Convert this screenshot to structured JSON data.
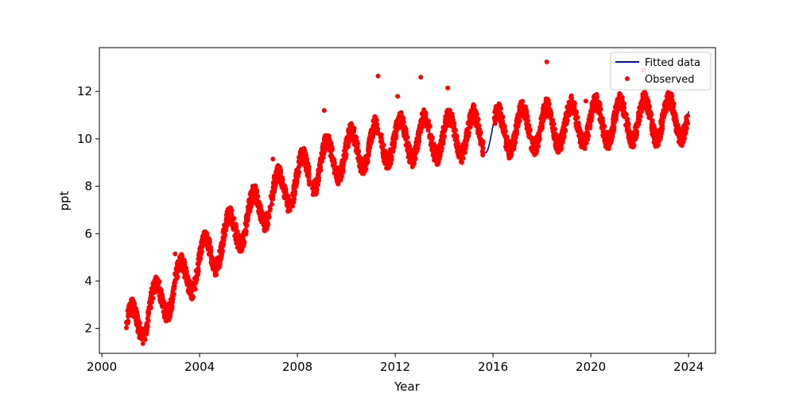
{
  "chart_data": {
    "type": "line",
    "title": "",
    "xlabel": "Year",
    "ylabel": "ppt",
    "xlim": [
      1999.9,
      2025.1
    ],
    "ylim": [
      0.95,
      13.85
    ],
    "xticks": [
      2000,
      2004,
      2008,
      2012,
      2016,
      2020,
      2024
    ],
    "yticks": [
      2,
      4,
      6,
      8,
      10,
      12
    ],
    "grid": false,
    "legend_position": "top-right",
    "series": [
      {
        "name": "Fitted data",
        "kind": "line",
        "color": "#0000ff",
        "x_range": [
          2001.0,
          2024.0
        ],
        "x_step": 0.02,
        "trend_knots": [
          [
            2001.0,
            1.85
          ],
          [
            2002.0,
            2.85
          ],
          [
            2003.0,
            3.75
          ],
          [
            2004.0,
            4.75
          ],
          [
            2005.0,
            5.75
          ],
          [
            2006.0,
            6.7
          ],
          [
            2007.0,
            7.55
          ],
          [
            2008.0,
            8.3
          ],
          [
            2009.0,
            8.95
          ],
          [
            2010.0,
            9.4
          ],
          [
            2011.0,
            9.75
          ],
          [
            2012.0,
            9.95
          ],
          [
            2013.0,
            10.05
          ],
          [
            2014.0,
            10.1
          ],
          [
            2015.0,
            10.2
          ],
          [
            2016.0,
            10.3
          ],
          [
            2017.0,
            10.4
          ],
          [
            2018.0,
            10.5
          ],
          [
            2019.0,
            10.6
          ],
          [
            2020.0,
            10.7
          ],
          [
            2021.0,
            10.75
          ],
          [
            2022.0,
            10.8
          ],
          [
            2023.0,
            10.85
          ],
          [
            2024.0,
            10.9
          ]
        ],
        "seasonal_amplitude": 0.85,
        "seasonal_peak_fraction": 0.2
      },
      {
        "name": "Observed",
        "kind": "scatter",
        "color": "#ff0000",
        "marker_size": 3,
        "segments": [
          [
            2001.0,
            2001.7
          ],
          [
            2001.75,
            2007.7
          ],
          [
            2007.8,
            2008.5
          ],
          [
            2008.6,
            2011.3
          ],
          [
            2011.4,
            2015.6
          ],
          [
            2016.05,
            2024.0
          ]
        ],
        "points_per_year": 160,
        "noise": 0.35,
        "outliers": [
          [
            2011.3,
            12.65
          ],
          [
            2013.05,
            12.6
          ],
          [
            2018.2,
            13.25
          ],
          [
            2022.15,
            12.9
          ],
          [
            2014.15,
            12.15
          ],
          [
            2009.1,
            11.2
          ],
          [
            2007.0,
            9.15
          ],
          [
            2003.0,
            5.15
          ],
          [
            2012.1,
            11.8
          ],
          [
            2015.2,
            11.45
          ],
          [
            2019.8,
            11.6
          ],
          [
            2021.0,
            11.35
          ]
        ]
      }
    ]
  }
}
